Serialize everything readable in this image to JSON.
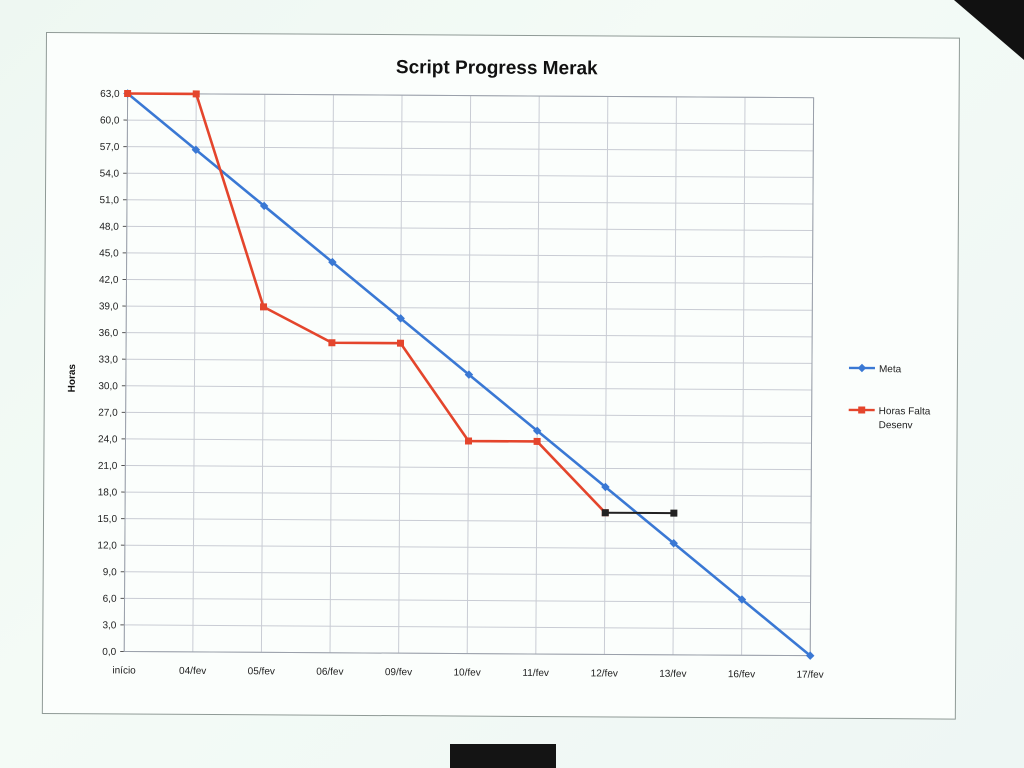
{
  "chart_data": {
    "type": "line",
    "title": "Script Progress  Merak",
    "ylabel": "Horas",
    "xlabel": "",
    "categories": [
      "início",
      "04/fev",
      "05/fev",
      "06/fev",
      "09/fev",
      "10/fev",
      "11/fev",
      "12/fev",
      "13/fev",
      "16/fev",
      "17/fev"
    ],
    "y_ticks": [
      "63,0",
      "60,0",
      "57,0",
      "54,0",
      "51,0",
      "48,0",
      "45,0",
      "42,0",
      "39,0",
      "36,0",
      "33,0",
      "30,0",
      "27,0",
      "24,0",
      "21,0",
      "18,0",
      "15,0",
      "12,0",
      "9,0",
      "6,0",
      "3,0",
      "0,0"
    ],
    "ylim": [
      0,
      63
    ],
    "grid": true,
    "legend_position": "right",
    "series": [
      {
        "name": "Meta",
        "color": "#3a78d4",
        "marker": "diamond",
        "values": [
          63,
          56.7,
          50.4,
          44.1,
          37.8,
          31.5,
          25.2,
          18.9,
          12.6,
          6.3,
          0
        ]
      },
      {
        "name": "Horas Falta Desenv",
        "color": "#e4452c",
        "marker": "square",
        "values": [
          63,
          63,
          39,
          35,
          35,
          24,
          24,
          16,
          null,
          null,
          null
        ]
      },
      {
        "color": "#222222",
        "marker": "square",
        "values": [
          null,
          null,
          null,
          null,
          null,
          null,
          null,
          16,
          16,
          null,
          null
        ]
      }
    ]
  }
}
